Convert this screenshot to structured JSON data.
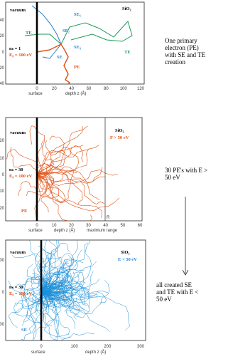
{
  "panels": [
    {
      "yticks": [
        "40",
        "20",
        "0",
        "20",
        "40"
      ],
      "xticks": [
        "0",
        "20",
        "40",
        "60",
        "80",
        "100",
        "120"
      ],
      "labels": {
        "vacuum": "vacuum",
        "material": "SiO₂",
        "se": "SE",
        "se1": "SE₁",
        "se2": "SE₂",
        "se3": "SE₃",
        "te1": "TE",
        "te2": "TE",
        "pe": "PE",
        "count": "nₛ = 1",
        "energy": "E₀ = 100 eV",
        "surface": "surface",
        "axis": "depth  z (Å)"
      }
    },
    {
      "yticks": [
        "20",
        "10",
        "0",
        "10",
        "20"
      ],
      "xticks": [
        "0",
        "10",
        "20",
        "30",
        "40",
        "50",
        "60"
      ],
      "labels": {
        "vacuum": "vacuum",
        "material": "SiO₂",
        "cut": "F > 50 eV",
        "count": "nₛ = 30",
        "energy": "E₀ = 100 eV",
        "pe": "PE",
        "range_mark": "R",
        "surface": "surface",
        "axis": "depth  z (Å)",
        "range": "maximum range"
      }
    },
    {
      "yticks": [
        "100",
        "0",
        "100"
      ],
      "xticks": [
        "0",
        "100",
        "200",
        "300"
      ],
      "labels": {
        "vacuum": "vacuum",
        "material": "SiO₂",
        "cut": "E < 50 eV",
        "count": "nₛ = 30",
        "energy": "E₀ = 100 eV",
        "se": "SE",
        "surface": "surface",
        "axis": "depth  z (Å)"
      }
    }
  ],
  "captions": [
    "One primary electron (PE) with SE and TE creation",
    "30 PE's with  E > 50 eV",
    "all created SE and TE with  E < 50 eV"
  ]
}
